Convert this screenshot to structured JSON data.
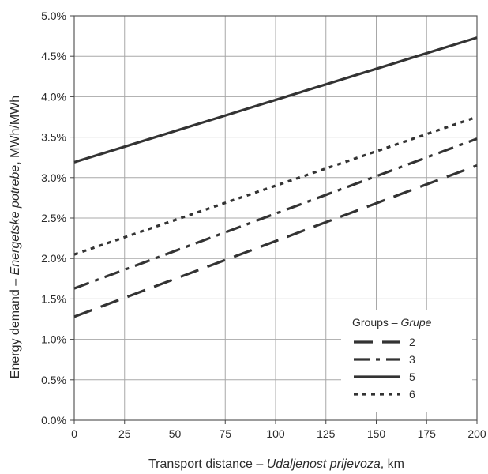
{
  "chart_data": {
    "type": "line",
    "xlabel": {
      "prefix": "Transport distance – ",
      "italic": "Udaljenost prijevoza",
      "suffix": ", km"
    },
    "ylabel": {
      "prefix": "Energy demand – ",
      "italic": "Energetske potrebe",
      "suffix": ", MWh/MWh"
    },
    "x_ticks": [
      "0",
      "25",
      "50",
      "75",
      "100",
      "125",
      "150",
      "175",
      "200"
    ],
    "y_ticks": [
      "0.0%",
      "0.5%",
      "1.0%",
      "1.5%",
      "2.0%",
      "2.5%",
      "3.0%",
      "3.5%",
      "4.0%",
      "4.5%",
      "5.0%"
    ],
    "xlim": [
      0,
      200
    ],
    "ylim": [
      0.0,
      5.0
    ],
    "grid": true,
    "legend": {
      "title_prefix": "Groups – ",
      "title_italic": "Grupe",
      "placement": "bottom-right"
    },
    "series": [
      {
        "name": "2",
        "style": "long-dash",
        "x": [
          0,
          200
        ],
        "y": [
          1.28,
          3.15
        ]
      },
      {
        "name": "3",
        "style": "dash-dot",
        "x": [
          0,
          200
        ],
        "y": [
          1.63,
          3.48
        ]
      },
      {
        "name": "5",
        "style": "solid",
        "x": [
          0,
          200
        ],
        "y": [
          3.19,
          4.73
        ]
      },
      {
        "name": "6",
        "style": "dotted",
        "x": [
          0,
          200
        ],
        "y": [
          2.05,
          3.75
        ]
      }
    ],
    "line_color": "#333333",
    "grid_color": "#a8a8a8"
  }
}
